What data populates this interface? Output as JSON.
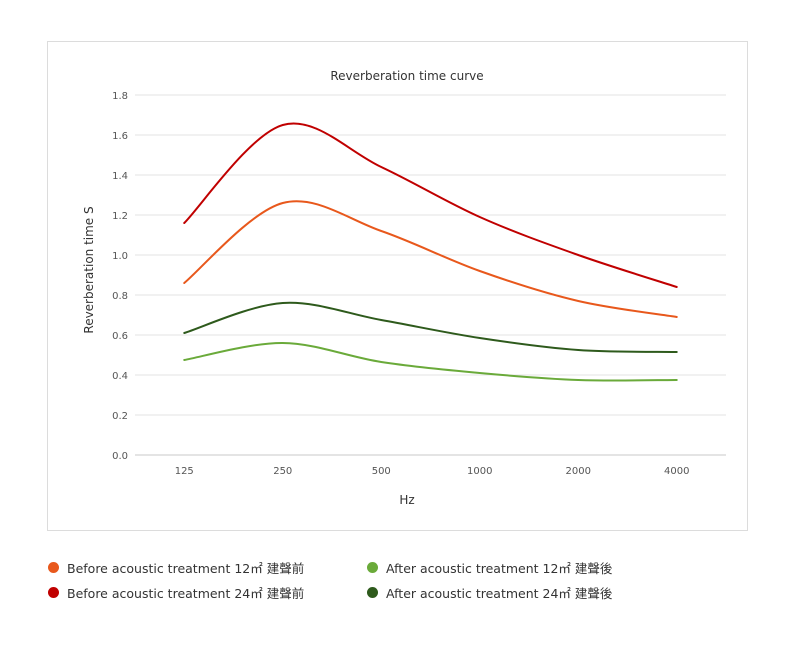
{
  "chart_data": {
    "type": "line",
    "title": "Reverberation time curve",
    "xlabel": "Hz",
    "ylabel": "Reverberation time  S",
    "categories": [
      "125",
      "250",
      "500",
      "1000",
      "2000",
      "4000"
    ],
    "ylim": [
      0,
      1.8
    ],
    "yticks": [
      "0.0",
      "0.2",
      "0.4",
      "0.6",
      "0.8",
      "1.0",
      "1.2",
      "1.4",
      "1.6",
      "1.8"
    ],
    "grid": true,
    "legend_position": "bottom",
    "series": [
      {
        "name": "Before acoustic treatment 12㎡ 建聲前",
        "color": "#e8581c",
        "values": [
          0.86,
          1.26,
          1.12,
          0.92,
          0.77,
          0.69
        ]
      },
      {
        "name": "Before acoustic treatment 24㎡ 建聲前",
        "color": "#c00000",
        "values": [
          1.16,
          1.65,
          1.44,
          1.19,
          1.0,
          0.84
        ]
      },
      {
        "name": "After acoustic treatment 12㎡ 建聲後",
        "color": "#6aaa3a",
        "values": [
          0.475,
          0.56,
          0.465,
          0.41,
          0.375,
          0.375
        ]
      },
      {
        "name": "After acoustic treatment 24㎡ 建聲後",
        "color": "#2e5a1c",
        "values": [
          0.61,
          0.76,
          0.675,
          0.585,
          0.525,
          0.515
        ]
      }
    ]
  }
}
